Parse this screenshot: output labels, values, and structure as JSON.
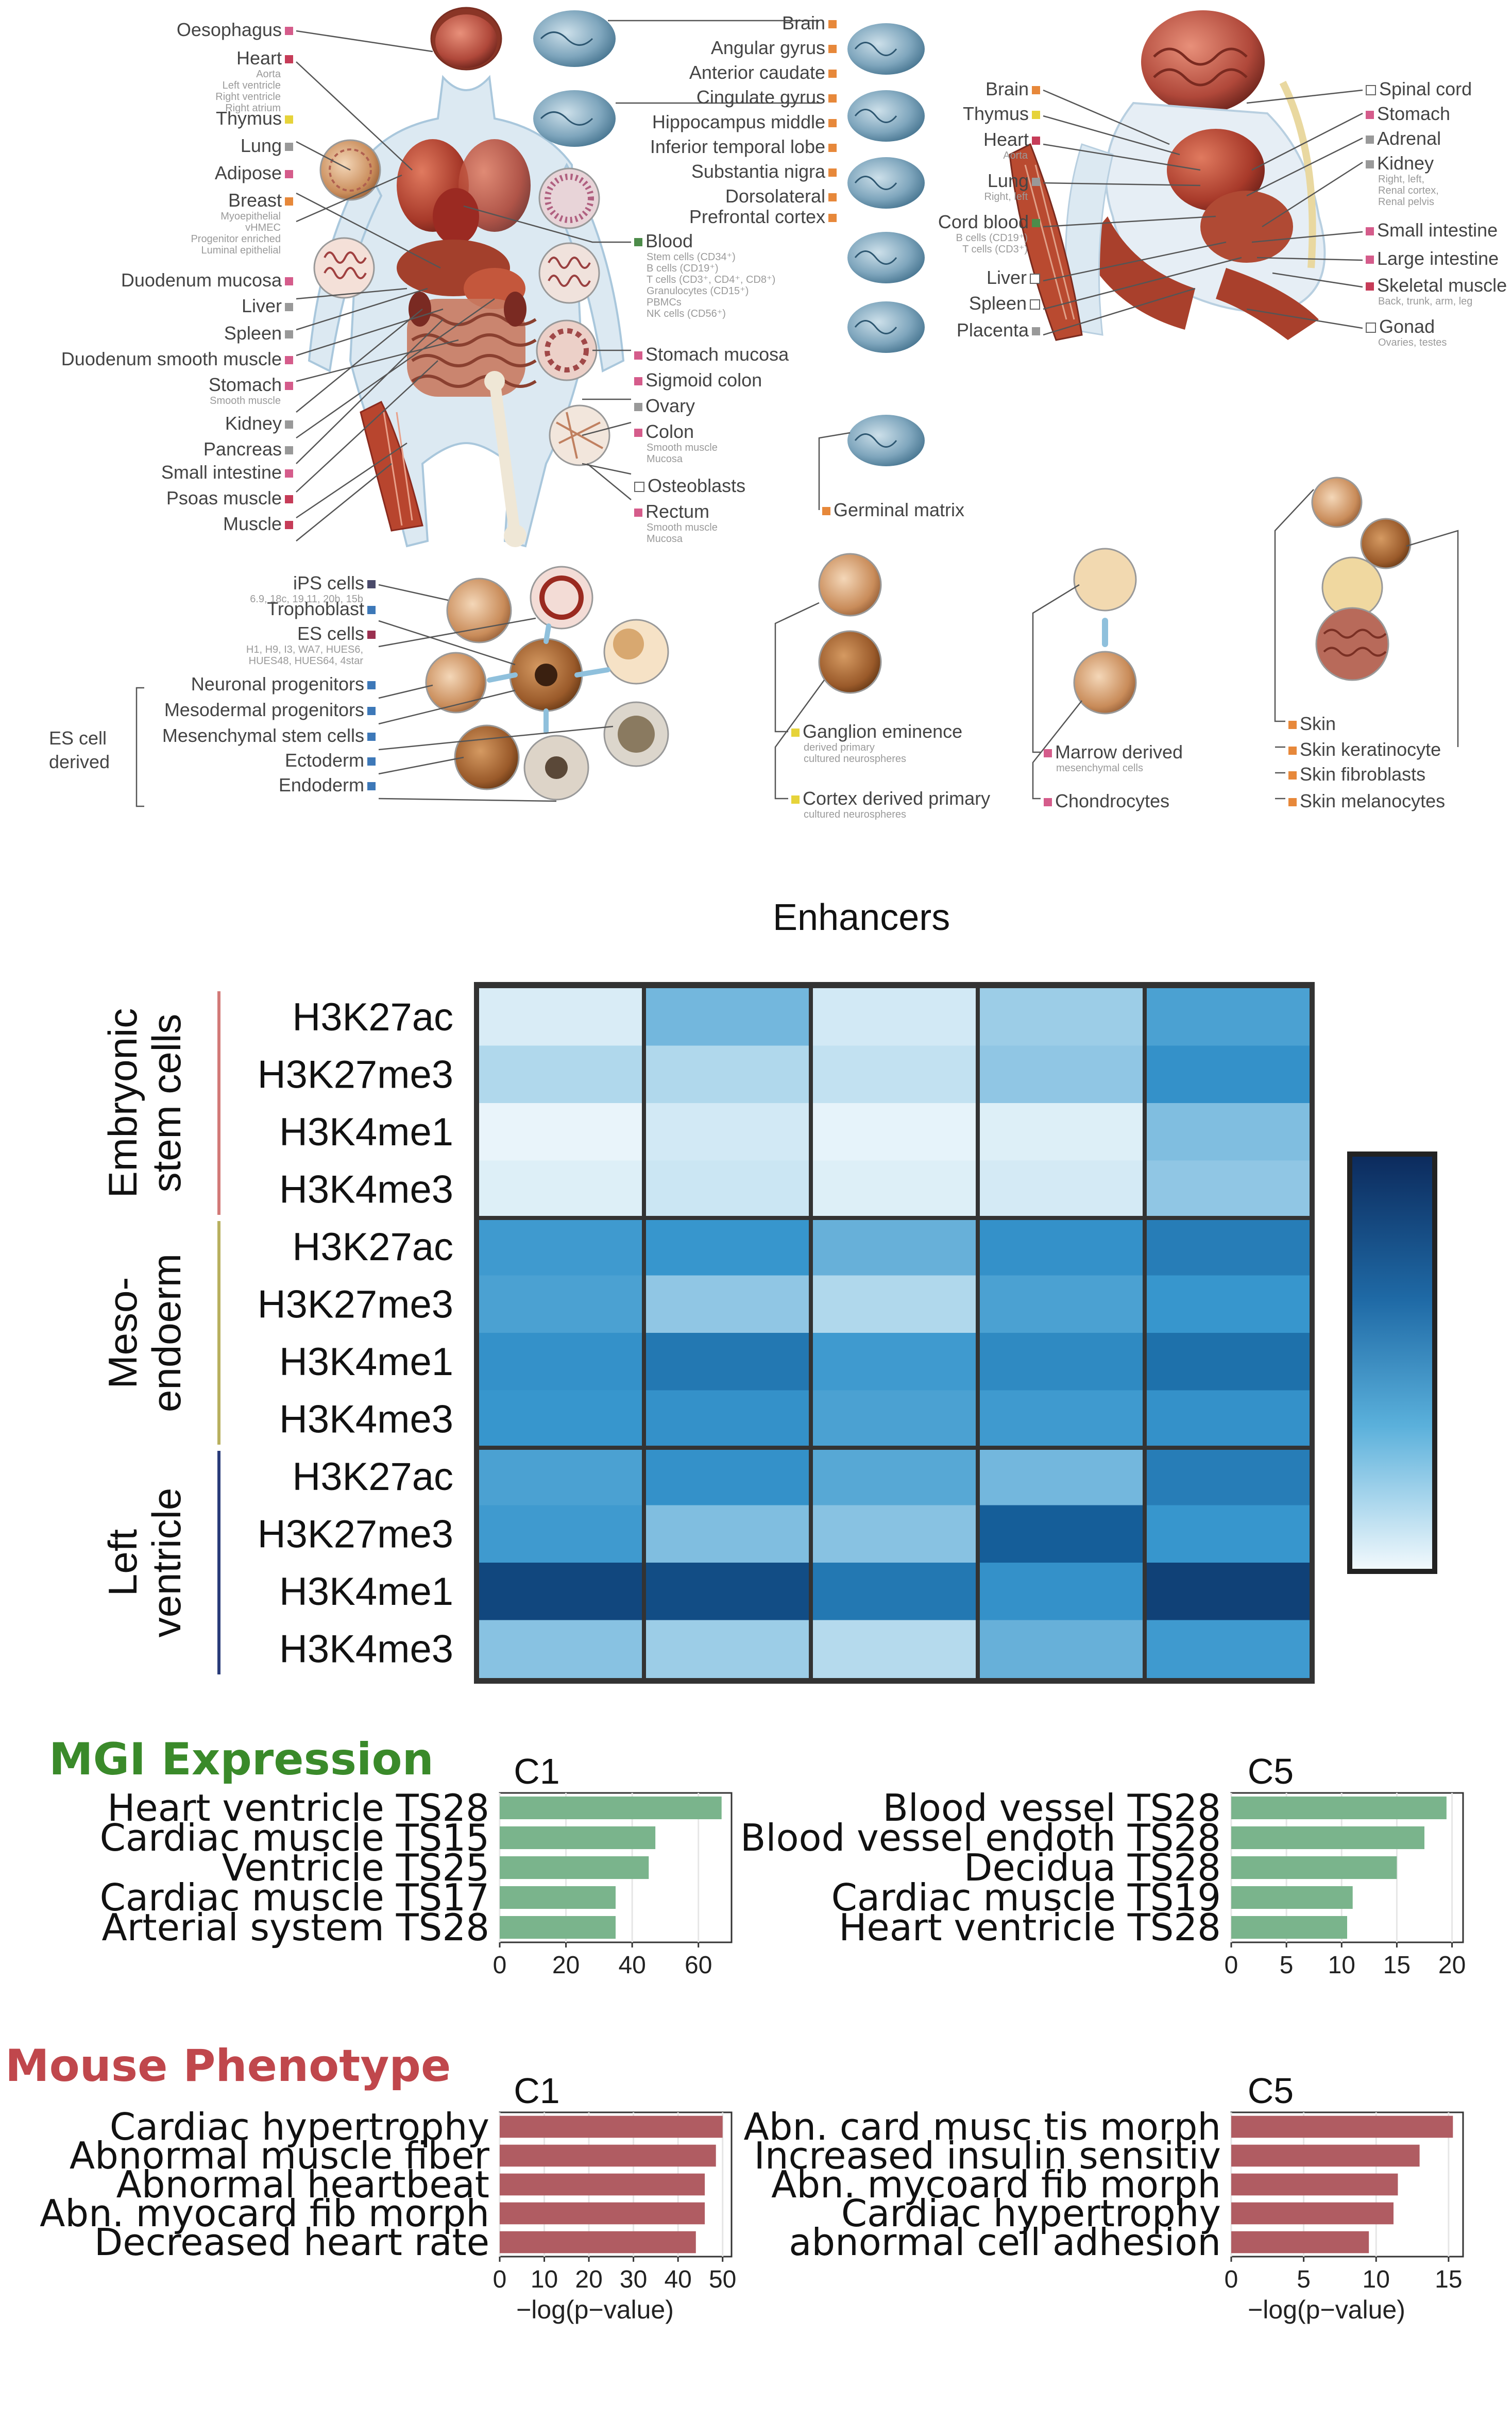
{
  "panel_a": {
    "body_left": [
      {
        "label": "Oesophagus",
        "sub": [],
        "color": "#d55c8b"
      },
      {
        "label": "Heart",
        "sub": [
          "Aorta",
          "Left ventricle",
          "Right ventricle",
          "Right atrium"
        ],
        "color": "#c63c58"
      },
      {
        "label": "Thymus",
        "sub": [],
        "color": "#e6d33a"
      },
      {
        "label": "Lung",
        "sub": [],
        "color": "#999999"
      },
      {
        "label": "Adipose",
        "sub": [],
        "color": "#d55c8b"
      },
      {
        "label": "Breast",
        "sub": [
          "Myoepithelial",
          "vHMEC",
          "Progenitor enriched",
          "Luminal epithelial"
        ],
        "color": "#e7883a"
      },
      {
        "label": "Duodenum mucosa",
        "sub": [],
        "color": "#d55c8b"
      },
      {
        "label": "Liver",
        "sub": [],
        "color": "#999999"
      },
      {
        "label": "Spleen",
        "sub": [],
        "color": "#999999"
      },
      {
        "label": "Duodenum smooth muscle",
        "sub": [],
        "color": "#d55c8b"
      },
      {
        "label": "Stomach",
        "sub": [
          "Smooth muscle"
        ],
        "color": "#d55c8b"
      },
      {
        "label": "Kidney",
        "sub": [],
        "color": "#999999"
      },
      {
        "label": "Pancreas",
        "sub": [],
        "color": "#999999"
      },
      {
        "label": "Small intestine",
        "sub": [],
        "color": "#d55c8b"
      },
      {
        "label": "Psoas muscle",
        "sub": [],
        "color": "#c63c58"
      },
      {
        "label": "Muscle",
        "sub": [],
        "color": "#c63c58"
      }
    ],
    "body_right": [
      {
        "label": "Blood",
        "sub": [
          "Stem cells (CD34⁺)",
          "B cells (CD19⁺)",
          "T cells (CD3⁺, CD4⁺, CD8⁺)",
          "Granulocytes (CD15⁺)",
          "PBMCs",
          "NK cells (CD56⁺)"
        ],
        "color": "#4d8c4a"
      },
      {
        "label": "Stomach mucosa",
        "sub": [],
        "color": "#d55c8b"
      },
      {
        "label": "Sigmoid colon",
        "sub": [],
        "color": "#d55c8b"
      },
      {
        "label": "Ovary",
        "sub": [],
        "color": "#999999"
      },
      {
        "label": "Colon",
        "sub": [
          "Smooth muscle",
          "Mucosa"
        ],
        "color": "#d55c8b"
      },
      {
        "label": "Osteoblasts",
        "sub": [],
        "color": "#ffffff"
      },
      {
        "label": "Rectum",
        "sub": [
          "Smooth muscle",
          "Mucosa"
        ],
        "color": "#d55c8b"
      }
    ],
    "brain": [
      {
        "label": "Brain",
        "color": "#e7883a"
      },
      {
        "label": "Angular gyrus",
        "color": "#e7883a"
      },
      {
        "label": "Anterior caudate",
        "color": "#e7883a"
      },
      {
        "label": "Cingulate gyrus",
        "color": "#e7883a"
      },
      {
        "label": "Hippocampus middle",
        "color": "#e7883a"
      },
      {
        "label": "Inferior temporal lobe",
        "color": "#e7883a"
      },
      {
        "label": "Substantia nigra",
        "color": "#e7883a"
      },
      {
        "label": "Dorsolateral",
        "color": "#e7883a"
      },
      {
        "label": "Prefrontal cortex",
        "color": "#e7883a"
      }
    ],
    "germinal": "Germinal matrix",
    "fetal_left": [
      {
        "label": "Brain",
        "sub": [],
        "color": "#e7883a"
      },
      {
        "label": "Thymus",
        "sub": [],
        "color": "#e6d33a"
      },
      {
        "label": "Heart",
        "sub": [
          "Aorta"
        ],
        "color": "#c63c58"
      },
      {
        "label": "Lung",
        "sub": [
          "Right, left"
        ],
        "color": "#999999"
      },
      {
        "label": "Cord blood",
        "sub": [
          "B cells (CD19⁺)",
          "T cells (CD3⁺)"
        ],
        "color": "#4d8c4a"
      },
      {
        "label": "Liver",
        "sub": [],
        "color": "#ffffff"
      },
      {
        "label": "Spleen",
        "sub": [],
        "color": "#ffffff"
      },
      {
        "label": "Placenta",
        "sub": [],
        "color": "#999999"
      }
    ],
    "fetal_right": [
      {
        "label": "Spinal cord",
        "sub": [],
        "color": "#ffffff"
      },
      {
        "label": "Stomach",
        "sub": [],
        "color": "#d55c8b"
      },
      {
        "label": "Adrenal",
        "sub": [],
        "color": "#999999"
      },
      {
        "label": "Kidney",
        "sub": [
          "Right, left,",
          "Renal cortex,",
          "Renal pelvis"
        ],
        "color": "#999999"
      },
      {
        "label": "Small intestine",
        "sub": [],
        "color": "#d55c8b"
      },
      {
        "label": "Large intestine",
        "sub": [],
        "color": "#d55c8b"
      },
      {
        "label": "Skeletal muscle",
        "sub": [
          "Back, trunk, arm, leg"
        ],
        "color": "#c63c58"
      },
      {
        "label": "Gonad",
        "sub": [
          "Ovaries, testes"
        ],
        "color": "#ffffff"
      }
    ],
    "cells": [
      {
        "label": "iPS cells",
        "sub": [
          "6.9, 18c, 19.11, 20b, 15b"
        ],
        "color": "#4a4a6a"
      },
      {
        "label": "Trophoblast",
        "sub": [],
        "color": "#3d78b8"
      },
      {
        "label": "ES cells",
        "sub": [
          "H1, H9, I3, WA7, HUES6,",
          "HUES48, HUES64, 4star"
        ],
        "color": "#9a3050"
      },
      {
        "label": "Neuronal progenitors",
        "sub": [],
        "color": "#3d78b8"
      },
      {
        "label": "Mesodermal progenitors",
        "sub": [],
        "color": "#3d78b8"
      },
      {
        "label": "Mesenchymal stem cells",
        "sub": [],
        "color": "#3d78b8"
      },
      {
        "label": "Ectoderm",
        "sub": [],
        "color": "#3d78b8"
      },
      {
        "label": "Endoderm",
        "sub": [],
        "color": "#3d78b8"
      }
    ],
    "es_derived": [
      "ES cell",
      "derived"
    ],
    "neuro": [
      {
        "label": "Ganglion eminence",
        "sub": [
          "derived primary",
          "cultured neurospheres"
        ],
        "color": "#e6d33a"
      },
      {
        "label": "Cortex derived primary",
        "sub": [
          "cultured neurospheres"
        ],
        "color": "#e6d33a"
      }
    ],
    "marrow": [
      {
        "label": "Marrow derived",
        "sub": [
          "mesenchymal cells"
        ],
        "color": "#d55c8b"
      },
      {
        "label": "Chondrocytes",
        "sub": [],
        "color": "#d55c8b"
      }
    ],
    "skin": [
      {
        "label": "Skin",
        "color": "#e7883a"
      },
      {
        "label": "Skin keratinocyte",
        "color": "#e7883a"
      },
      {
        "label": "Skin fibroblasts",
        "color": "#e7883a"
      },
      {
        "label": "Skin melanocytes",
        "color": "#e7883a"
      }
    ]
  },
  "heatmap": {
    "title": "Enhancers",
    "groups": [
      {
        "name_lines": [
          "Embryonic",
          "stem cells"
        ],
        "color": "#d27a78"
      },
      {
        "name_lines": [
          "Meso-",
          "endoerm"
        ],
        "color": "#b8b060"
      },
      {
        "name_lines": [
          "Left",
          "ventricle"
        ],
        "color": "#2a3c7a"
      }
    ],
    "row_labels": [
      "H3K27ac",
      "H3K27me3",
      "H3K4me1",
      "H3K4me3",
      "H3K27ac",
      "H3K27me3",
      "H3K4me1",
      "H3K4me3",
      "H3K27ac",
      "H3K27me3",
      "H3K4me1",
      "H3K4me3"
    ],
    "colorbar": {
      "low": "#f4fafd",
      "high": "#0c2a5c"
    }
  },
  "chart_data": [
    {
      "type": "heatmap",
      "title": "Enhancers",
      "rows": [
        "H3K27ac",
        "H3K27me3",
        "H3K4me1",
        "H3K4me3",
        "H3K27ac",
        "H3K27me3",
        "H3K4me1",
        "H3K4me3",
        "H3K27ac",
        "H3K27me3",
        "H3K4me1",
        "H3K4me3"
      ],
      "row_groups": [
        "Embryonic stem cells",
        "Meso-endoerm",
        "Left ventricle"
      ],
      "columns": 5,
      "values": [
        [
          0.12,
          0.45,
          0.15,
          0.35,
          0.55
        ],
        [
          0.3,
          0.3,
          0.22,
          0.38,
          0.62
        ],
        [
          0.05,
          0.15,
          0.06,
          0.1,
          0.42
        ],
        [
          0.1,
          0.18,
          0.1,
          0.14,
          0.38
        ],
        [
          0.58,
          0.6,
          0.48,
          0.62,
          0.7
        ],
        [
          0.55,
          0.38,
          0.3,
          0.55,
          0.6
        ],
        [
          0.62,
          0.72,
          0.58,
          0.65,
          0.75
        ],
        [
          0.6,
          0.62,
          0.55,
          0.58,
          0.62
        ],
        [
          0.55,
          0.62,
          0.52,
          0.45,
          0.7
        ],
        [
          0.58,
          0.42,
          0.4,
          0.82,
          0.6
        ],
        [
          0.9,
          0.88,
          0.72,
          0.62,
          0.92
        ],
        [
          0.4,
          0.35,
          0.28,
          0.48,
          0.58
        ]
      ]
    },
    {
      "type": "bar",
      "orientation": "horizontal",
      "section": "MGI Expression",
      "title": "C1",
      "categories": [
        "Heart ventricle TS28",
        "Cardiac muscle TS15",
        "Ventricle TS25",
        "Cardiac muscle TS17",
        "Arterial system TS28"
      ],
      "values": [
        67,
        47,
        45,
        35,
        35
      ],
      "xlim": [
        0,
        70
      ],
      "xticks": [
        0,
        20,
        40,
        60
      ],
      "color": "#7ab48c"
    },
    {
      "type": "bar",
      "orientation": "horizontal",
      "section": "MGI Expression",
      "title": "C5",
      "categories": [
        "Blood vessel TS28",
        "Blood vessel endoth TS28",
        "Decidua TS28",
        "Cardiac muscle TS19",
        "Heart ventricle TS28"
      ],
      "values": [
        19.5,
        17.5,
        15,
        11,
        10.5
      ],
      "xlim": [
        0,
        21
      ],
      "xticks": [
        0,
        5,
        10,
        15,
        20
      ],
      "color": "#7ab48c"
    },
    {
      "type": "bar",
      "orientation": "horizontal",
      "section": "Mouse Phenotype",
      "title": "C1",
      "categories": [
        "Cardiac hypertrophy",
        "Abnormal muscle fiber",
        "Abnormal heartbeat",
        "Abn. myocard fib morph",
        "Decreased heart rate"
      ],
      "values": [
        50,
        48.5,
        46,
        46,
        44
      ],
      "xlim": [
        0,
        52
      ],
      "xticks": [
        0,
        10,
        20,
        30,
        40,
        50
      ],
      "xlabel": "−log(p−value)",
      "color": "#b05c62"
    },
    {
      "type": "bar",
      "orientation": "horizontal",
      "section": "Mouse Phenotype",
      "title": "C5",
      "categories": [
        "Abn. card musc tis morph",
        "Increased insulin sensitiv",
        "Abn. mycoard fib morph",
        "Cardiac hypertrophy",
        "abnormal cell adhesion"
      ],
      "values": [
        15.3,
        13,
        11.5,
        11.2,
        9.5
      ],
      "xlim": [
        0,
        16
      ],
      "xticks": [
        0,
        5,
        10,
        15
      ],
      "xlabel": "−log(p−value)",
      "color": "#b05c62"
    }
  ],
  "sections": {
    "mgi": {
      "title": "MGI Expression",
      "color": "#3a8a2a"
    },
    "pheno": {
      "title": "Mouse Phenotype",
      "color": "#c0474c"
    }
  }
}
